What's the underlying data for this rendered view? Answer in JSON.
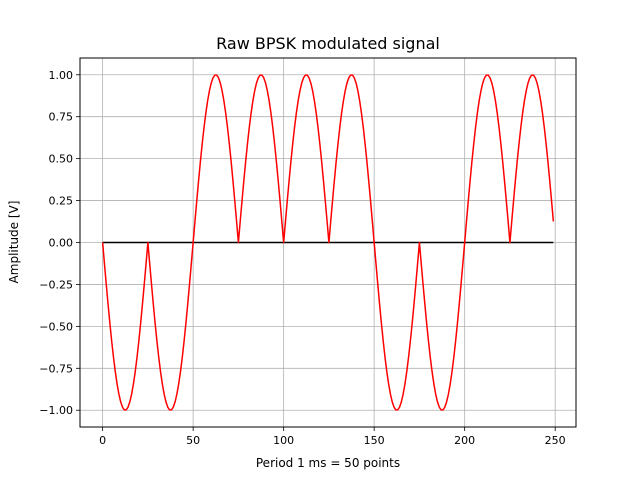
{
  "chart_data": {
    "type": "line",
    "title": "Raw BPSK modulated signal",
    "xlabel": "Period 1 ms = 50 points",
    "ylabel": "Amplitude [V]",
    "xlim": [
      -12.5,
      261.5
    ],
    "ylim": [
      -1.1,
      1.1
    ],
    "xticks": [
      0,
      50,
      100,
      150,
      200,
      250
    ],
    "xtick_labels": [
      "0",
      "50",
      "100",
      "150",
      "200",
      "250"
    ],
    "yticks": [
      -1.0,
      -0.75,
      -0.5,
      -0.25,
      0.0,
      0.25,
      0.5,
      0.75,
      1.0
    ],
    "ytick_labels": [
      "−1.00",
      "−0.75",
      "−0.50",
      "−0.25",
      "0.00",
      "0.25",
      "0.50",
      "0.75",
      "1.00"
    ],
    "grid": true,
    "samples_per_period": 50,
    "bits": [
      1,
      0,
      0,
      1,
      0
    ],
    "series": [
      {
        "color": "#ff0000",
        "x_range": [
          0,
          249
        ],
        "formula": "-|sin(2*pi*x/50)| for bit 1, |sin(2*pi*x/50)| for bit 0"
      },
      {
        "color": "#000000",
        "x": [
          0,
          249
        ],
        "y": [
          0,
          0
        ]
      }
    ]
  }
}
